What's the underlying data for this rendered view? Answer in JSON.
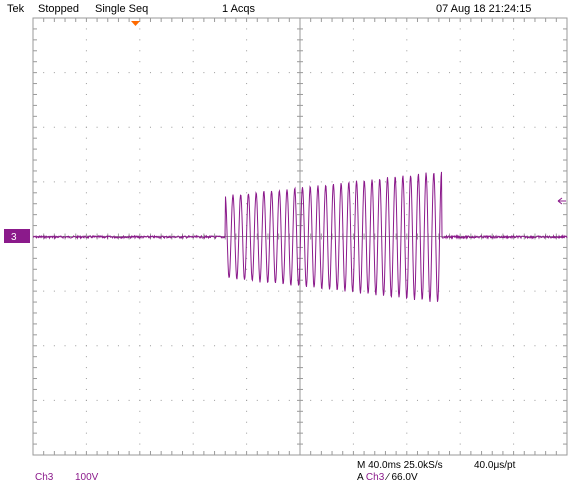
{
  "status_bar": {
    "brand": "Tek",
    "state": "Stopped",
    "mode": "Single Seq",
    "acquisitions": "1 Acqs",
    "datetime": "07 Aug 18 21:24:15"
  },
  "channel": {
    "marker_label": "3",
    "name": "Ch3",
    "scale": "100V",
    "color": "#8b1a8b"
  },
  "horizontal": {
    "timebase": "M 40.0ms 25.0kS/s",
    "resolution": "40.0μs/pt"
  },
  "trigger": {
    "source_prefix": "A",
    "source": "Ch3",
    "slope_symbol": "∕",
    "level": "66.0V"
  },
  "colors": {
    "grid": "#9a9a9a",
    "trigger_marker": "#ff6a00",
    "waveform": "#8b1a8b"
  },
  "waveform_cycles": {
    "burst_start_division": 3.6,
    "burst_end_division": 7.65,
    "count": 28,
    "amplitude_divisions_start": 0.75,
    "amplitude_divisions_end": 1.2
  }
}
